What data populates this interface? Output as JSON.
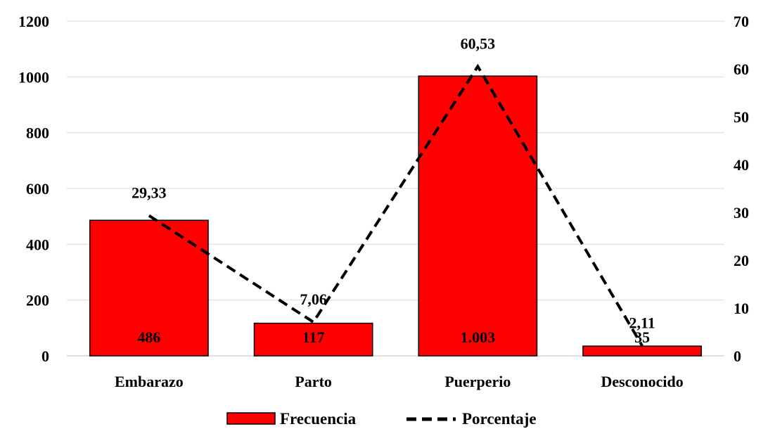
{
  "chart_data": {
    "type": "bar",
    "categories": [
      "Embarazo",
      "Parto",
      "Puerperio",
      "Desconocido"
    ],
    "series": [
      {
        "name": "Frecuencia",
        "type": "bar",
        "axis": "left",
        "values": [
          486,
          117,
          1003,
          35
        ],
        "labels": [
          "486",
          "117",
          "1.003",
          "35"
        ],
        "color": "#ff0000"
      },
      {
        "name": "Porcentaje",
        "type": "line",
        "axis": "right",
        "style": "dashed",
        "values": [
          29.33,
          7.06,
          60.53,
          2.11
        ],
        "labels": [
          "29,33",
          "7,06",
          "60,53",
          "2,11"
        ],
        "color": "#000000"
      }
    ],
    "ylim_left": [
      0,
      1200
    ],
    "ylim_right": [
      0,
      70
    ],
    "yticks_left": [
      "0",
      "200",
      "400",
      "600",
      "800",
      "1000",
      "1200"
    ],
    "yticks_right": [
      "0",
      "10",
      "20",
      "30",
      "40",
      "50",
      "60",
      "70"
    ],
    "grid": true,
    "legend_position": "bottom"
  }
}
